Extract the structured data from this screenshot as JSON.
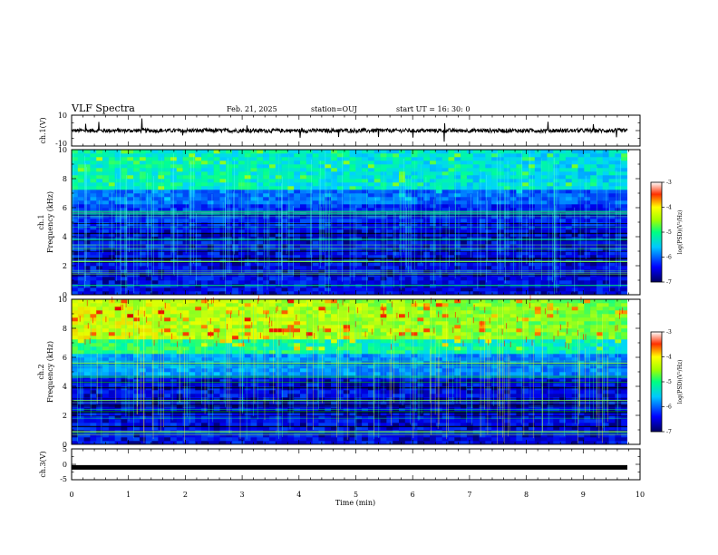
{
  "header": {
    "title": "VLF Spectra",
    "date": "Feb. 21, 2025",
    "station": "station=OUJ",
    "start": "start  UT =   16: 30: 0"
  },
  "chart_data": [
    {
      "type": "line",
      "panel": "ch1-waveform",
      "ylabel": "ch.1(V)",
      "ylim": [
        -10,
        10
      ],
      "yticks": [
        "10",
        "-10"
      ],
      "xlim": [
        0,
        10
      ],
      "baseline": 0
    },
    {
      "type": "heatmap",
      "panel": "ch1-spectrogram",
      "ylabel_top": "ch.1",
      "ylabel": "Frequency (kHz)",
      "ylim": [
        0,
        10
      ],
      "yticks": [
        "0",
        "2",
        "4",
        "6",
        "8",
        "10"
      ],
      "xlim": [
        0,
        10
      ],
      "colorbar": {
        "label": "log(PSD)(V²/Hz)",
        "range": [
          -7,
          -3
        ],
        "ticks": [
          "-3",
          "-4",
          "-5",
          "-6",
          "-7"
        ]
      }
    },
    {
      "type": "heatmap",
      "panel": "ch2-spectrogram",
      "ylabel_top": "ch.2",
      "ylabel": "Frequency (kHz)",
      "ylim": [
        0,
        10
      ],
      "yticks": [
        "0",
        "2",
        "4",
        "6",
        "8",
        "10"
      ],
      "xlim": [
        0,
        10
      ],
      "colorbar": {
        "label": "log(PSD)(V²/Hz)",
        "range": [
          -7,
          -3
        ],
        "ticks": [
          "-3",
          "-4",
          "-5",
          "-6",
          "-7"
        ]
      }
    },
    {
      "type": "line",
      "panel": "ch3-waveform",
      "ylabel": "ch.3(V)",
      "ylim": [
        -5,
        5
      ],
      "yticks": [
        "5",
        "0",
        "-5"
      ],
      "xlim": [
        0,
        10
      ],
      "baseline": -1,
      "xlabel": "Time (min)",
      "xticks": [
        "0",
        "1",
        "2",
        "3",
        "4",
        "5",
        "6",
        "7",
        "8",
        "9",
        "10"
      ]
    }
  ]
}
